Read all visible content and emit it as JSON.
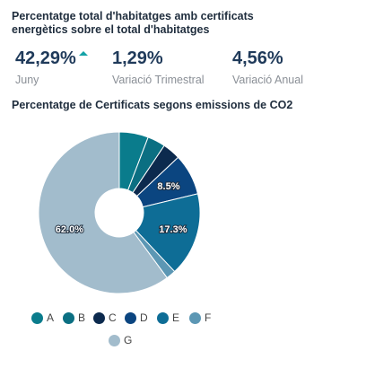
{
  "header": {
    "title": "Percentatge total d'habitatges amb certificats energètics sobre el total d'habitatges"
  },
  "kpis": [
    {
      "value": "42,29%",
      "label": "Juny",
      "trend": "up"
    },
    {
      "value": "1,29%",
      "label": "Variació Trimestral"
    },
    {
      "value": "4,56%",
      "label": "Variació Anual"
    }
  ],
  "colors": {
    "trend_up": "#14a3a7"
  },
  "chart_data": {
    "type": "pie",
    "title": "Percentatge de Certificats segons emissions de CO2",
    "hole": true,
    "categories": [
      "A",
      "B",
      "C",
      "D",
      "E",
      "F",
      "G"
    ],
    "values": [
      6.0,
      3.7,
      3.7,
      8.5,
      17.3,
      2.0,
      62.0
    ],
    "data_labels": [
      "",
      "",
      "",
      "8.5%",
      "17.3%",
      "",
      "62.0%"
    ],
    "colors": [
      "#0a7c8c",
      "#0b6f82",
      "#0c2a4e",
      "#0b4580",
      "#0e6d96",
      "#5c97b4",
      "#a2bccc"
    ],
    "legend": "bottom"
  }
}
